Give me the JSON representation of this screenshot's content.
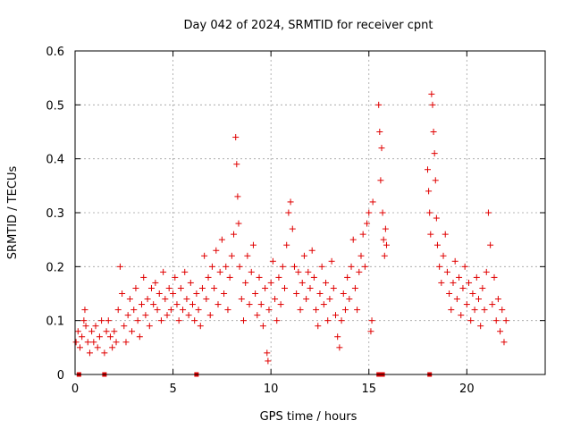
{
  "chart_data": {
    "type": "scatter",
    "title": "Day 042 of 2024, SRMTID for receiver cpnt",
    "xlabel": "GPS time / hours",
    "ylabel": "SRMTID / TECUs",
    "xlim": [
      0,
      24
    ],
    "ylim": [
      0,
      0.6
    ],
    "xticks": [
      0,
      5,
      10,
      15,
      20
    ],
    "xtick_labels": [
      "0",
      "5",
      "10",
      "15",
      "20"
    ],
    "yticks": [
      0,
      0.1,
      0.2,
      0.3,
      0.4,
      0.5,
      0.6
    ],
    "ytick_labels": [
      "0",
      "0.1",
      "0.2",
      "0.3",
      "0.4",
      "0.5",
      "0.6"
    ],
    "grid": true,
    "marker": "+",
    "color": "#e00000",
    "series": [
      {
        "name": "SRMTID",
        "points": [
          [
            0.05,
            0.06
          ],
          [
            0.15,
            0.08
          ],
          [
            0.25,
            0.05
          ],
          [
            0.35,
            0.07
          ],
          [
            0.45,
            0.1
          ],
          [
            0.5,
            0.12
          ],
          [
            0.55,
            0.09
          ],
          [
            0.65,
            0.06
          ],
          [
            0.75,
            0.04
          ],
          [
            0.85,
            0.08
          ],
          [
            0.95,
            0.06
          ],
          [
            1.05,
            0.09
          ],
          [
            1.15,
            0.05
          ],
          [
            1.25,
            0.07
          ],
          [
            1.35,
            0.1
          ],
          [
            1.5,
            0.04
          ],
          [
            1.6,
            0.08
          ],
          [
            1.7,
            0.1
          ],
          [
            1.8,
            0.07
          ],
          [
            1.9,
            0.05
          ],
          [
            2.0,
            0.08
          ],
          [
            2.1,
            0.06
          ],
          [
            2.2,
            0.12
          ],
          [
            2.3,
            0.2
          ],
          [
            2.4,
            0.15
          ],
          [
            2.5,
            0.09
          ],
          [
            2.6,
            0.06
          ],
          [
            2.7,
            0.11
          ],
          [
            2.8,
            0.14
          ],
          [
            2.9,
            0.08
          ],
          [
            3.0,
            0.12
          ],
          [
            3.1,
            0.16
          ],
          [
            3.2,
            0.1
          ],
          [
            3.3,
            0.07
          ],
          [
            3.4,
            0.13
          ],
          [
            3.5,
            0.18
          ],
          [
            3.6,
            0.11
          ],
          [
            3.7,
            0.14
          ],
          [
            3.8,
            0.09
          ],
          [
            3.9,
            0.16
          ],
          [
            4.0,
            0.13
          ],
          [
            4.1,
            0.17
          ],
          [
            4.2,
            0.12
          ],
          [
            4.3,
            0.15
          ],
          [
            4.4,
            0.1
          ],
          [
            4.5,
            0.19
          ],
          [
            4.6,
            0.14
          ],
          [
            4.7,
            0.11
          ],
          [
            4.8,
            0.16
          ],
          [
            4.9,
            0.12
          ],
          [
            5.0,
            0.15
          ],
          [
            5.1,
            0.18
          ],
          [
            5.2,
            0.13
          ],
          [
            5.3,
            0.1
          ],
          [
            5.4,
            0.16
          ],
          [
            5.5,
            0.12
          ],
          [
            5.6,
            0.19
          ],
          [
            5.7,
            0.14
          ],
          [
            5.8,
            0.11
          ],
          [
            5.9,
            0.17
          ],
          [
            6.0,
            0.13
          ],
          [
            6.1,
            0.1
          ],
          [
            6.2,
            0.15
          ],
          [
            6.3,
            0.12
          ],
          [
            6.4,
            0.09
          ],
          [
            6.5,
            0.16
          ],
          [
            6.6,
            0.22
          ],
          [
            6.7,
            0.14
          ],
          [
            6.8,
            0.18
          ],
          [
            6.9,
            0.11
          ],
          [
            7.0,
            0.2
          ],
          [
            7.1,
            0.16
          ],
          [
            7.2,
            0.23
          ],
          [
            7.3,
            0.13
          ],
          [
            7.4,
            0.19
          ],
          [
            7.5,
            0.25
          ],
          [
            7.6,
            0.15
          ],
          [
            7.7,
            0.2
          ],
          [
            7.8,
            0.12
          ],
          [
            7.9,
            0.18
          ],
          [
            8.0,
            0.22
          ],
          [
            8.1,
            0.26
          ],
          [
            8.2,
            0.44
          ],
          [
            8.25,
            0.39
          ],
          [
            8.3,
            0.33
          ],
          [
            8.35,
            0.28
          ],
          [
            8.4,
            0.2
          ],
          [
            8.5,
            0.14
          ],
          [
            8.6,
            0.1
          ],
          [
            8.7,
            0.17
          ],
          [
            8.8,
            0.22
          ],
          [
            8.9,
            0.13
          ],
          [
            9.0,
            0.19
          ],
          [
            9.1,
            0.24
          ],
          [
            9.2,
            0.15
          ],
          [
            9.3,
            0.11
          ],
          [
            9.4,
            0.18
          ],
          [
            9.5,
            0.13
          ],
          [
            9.6,
            0.09
          ],
          [
            9.7,
            0.16
          ],
          [
            9.8,
            0.04
          ],
          [
            9.85,
            0.025
          ],
          [
            9.9,
            0.12
          ],
          [
            10.0,
            0.17
          ],
          [
            10.1,
            0.21
          ],
          [
            10.2,
            0.14
          ],
          [
            10.3,
            0.1
          ],
          [
            10.4,
            0.18
          ],
          [
            10.5,
            0.13
          ],
          [
            10.6,
            0.2
          ],
          [
            10.7,
            0.16
          ],
          [
            10.8,
            0.24
          ],
          [
            10.9,
            0.3
          ],
          [
            11.0,
            0.32
          ],
          [
            11.1,
            0.27
          ],
          [
            11.2,
            0.2
          ],
          [
            11.3,
            0.15
          ],
          [
            11.4,
            0.19
          ],
          [
            11.5,
            0.12
          ],
          [
            11.6,
            0.17
          ],
          [
            11.7,
            0.22
          ],
          [
            11.8,
            0.14
          ],
          [
            11.9,
            0.19
          ],
          [
            12.0,
            0.16
          ],
          [
            12.1,
            0.23
          ],
          [
            12.2,
            0.18
          ],
          [
            12.3,
            0.12
          ],
          [
            12.4,
            0.09
          ],
          [
            12.5,
            0.15
          ],
          [
            12.6,
            0.2
          ],
          [
            12.7,
            0.13
          ],
          [
            12.8,
            0.17
          ],
          [
            12.9,
            0.1
          ],
          [
            13.0,
            0.14
          ],
          [
            13.1,
            0.21
          ],
          [
            13.2,
            0.16
          ],
          [
            13.3,
            0.11
          ],
          [
            13.4,
            0.07
          ],
          [
            13.5,
            0.05
          ],
          [
            13.6,
            0.1
          ],
          [
            13.7,
            0.15
          ],
          [
            13.8,
            0.12
          ],
          [
            13.9,
            0.18
          ],
          [
            14.0,
            0.14
          ],
          [
            14.1,
            0.2
          ],
          [
            14.2,
            0.25
          ],
          [
            14.3,
            0.16
          ],
          [
            14.4,
            0.12
          ],
          [
            14.5,
            0.19
          ],
          [
            14.6,
            0.22
          ],
          [
            14.7,
            0.26
          ],
          [
            14.8,
            0.2
          ],
          [
            14.9,
            0.28
          ],
          [
            15.0,
            0.3
          ],
          [
            15.1,
            0.08
          ],
          [
            15.15,
            0.1
          ],
          [
            15.2,
            0.32
          ],
          [
            15.5,
            0.5
          ],
          [
            15.55,
            0.45
          ],
          [
            15.6,
            0.36
          ],
          [
            15.65,
            0.42
          ],
          [
            15.7,
            0.3
          ],
          [
            15.75,
            0.25
          ],
          [
            15.8,
            0.22
          ],
          [
            15.85,
            0.27
          ],
          [
            15.9,
            0.24
          ],
          [
            18.0,
            0.38
          ],
          [
            18.05,
            0.34
          ],
          [
            18.1,
            0.3
          ],
          [
            18.15,
            0.26
          ],
          [
            18.2,
            0.52
          ],
          [
            18.25,
            0.5
          ],
          [
            18.3,
            0.45
          ],
          [
            18.35,
            0.41
          ],
          [
            18.4,
            0.36
          ],
          [
            18.45,
            0.29
          ],
          [
            18.5,
            0.24
          ],
          [
            18.6,
            0.2
          ],
          [
            18.7,
            0.17
          ],
          [
            18.8,
            0.22
          ],
          [
            18.9,
            0.26
          ],
          [
            19.0,
            0.19
          ],
          [
            19.1,
            0.15
          ],
          [
            19.2,
            0.12
          ],
          [
            19.3,
            0.17
          ],
          [
            19.4,
            0.21
          ],
          [
            19.5,
            0.14
          ],
          [
            19.6,
            0.18
          ],
          [
            19.7,
            0.11
          ],
          [
            19.8,
            0.16
          ],
          [
            19.9,
            0.2
          ],
          [
            20.0,
            0.13
          ],
          [
            20.1,
            0.17
          ],
          [
            20.2,
            0.1
          ],
          [
            20.3,
            0.15
          ],
          [
            20.4,
            0.12
          ],
          [
            20.5,
            0.18
          ],
          [
            20.6,
            0.14
          ],
          [
            20.7,
            0.09
          ],
          [
            20.8,
            0.16
          ],
          [
            20.9,
            0.12
          ],
          [
            21.0,
            0.19
          ],
          [
            21.1,
            0.3
          ],
          [
            21.2,
            0.24
          ],
          [
            21.3,
            0.13
          ],
          [
            21.4,
            0.18
          ],
          [
            21.5,
            0.1
          ],
          [
            21.6,
            0.14
          ],
          [
            21.7,
            0.08
          ],
          [
            21.8,
            0.12
          ],
          [
            21.9,
            0.06
          ],
          [
            22.0,
            0.1
          ]
        ]
      }
    ],
    "baseline_markers": [
      0.2,
      1.5,
      6.2,
      15.5,
      15.7,
      18.1
    ]
  }
}
